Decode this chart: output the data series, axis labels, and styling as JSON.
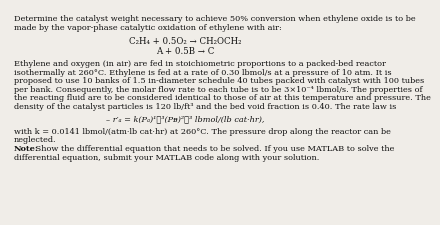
{
  "bg_color": "#f0ede8",
  "text_color": "#111111",
  "title_line1": "Determine the catalyst weight necessary to achieve 50% conversion when ethylene oxide is to be",
  "title_line2": "made by the vapor-phase catalytic oxidation of ethylene with air:",
  "reaction1": "C₂H₄ + 0.5O₂ → CH₂OCH₂",
  "reaction2": "A + 0.5B → C",
  "body_lines": [
    "Ethylene and oxygen (in air) are fed in stoichiometric proportions to a packed-bed reactor",
    "isothermally at 260°C. Ethylene is fed at a rate of 0.30 lbmol/s at a pressure of 10 atm. It is",
    "proposed to use 10 banks of 1.5 in-diameter schedule 40 tubes packed with catalyst with 100 tubes",
    "per bank. Consequently, the molar flow rate to each tube is to be 3×10⁻⁴ lbmol/s. The properties of",
    "the reacting fluid are to be considered identical to those of air at this temperature and pressure. The",
    "density of the catalyst particles is 120 lb/ft³ and the bed void fraction is 0.40. The rate law is"
  ],
  "rate_law": "– r′ₐ = k(Pₐ)¹ᐟ³(Pᴃ)²ᐟ³ lbmol/(lb cat·hr),",
  "body2_lines": [
    "with k = 0.0141 lbmol/(atm·lb cat·hr) at 260°C. The pressure drop along the reactor can be",
    "neglected."
  ],
  "note_bold": "Note:",
  "note_rest": " Show the differential equation that needs to be solved. If you use MATLAB to solve the",
  "note_line2": "differential equation, submit your MATLAB code along with your solution.",
  "fs": 5.85,
  "fs_rxn": 6.2
}
